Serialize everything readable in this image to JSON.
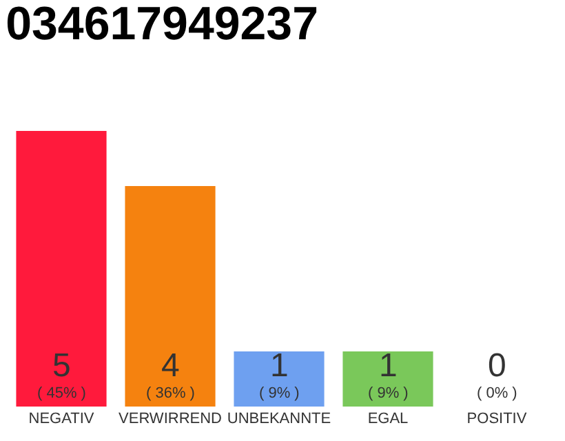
{
  "chart_data": {
    "type": "bar",
    "title": "034617949237",
    "categories": [
      "NEGATIV",
      "VERWIRREND",
      "UNBEKANNTE",
      "EGAL",
      "POSITIV"
    ],
    "values": [
      5,
      4,
      1,
      1,
      0
    ],
    "colors": [
      "#ff1a3c",
      "#f5820f",
      "#6ea0f0",
      "#7ac85a",
      "#eeeeee"
    ],
    "value_labels": [
      "5\n( 45% )",
      "4\n( 36% )",
      "1\n( 9% )",
      "1\n( 9% )",
      "0\n( 0% )"
    ],
    "legend": false
  }
}
